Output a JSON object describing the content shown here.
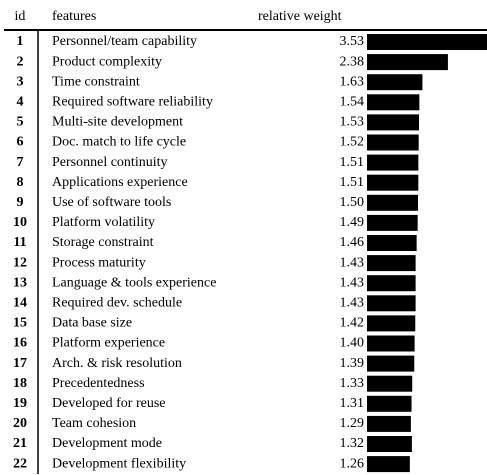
{
  "table": {
    "header": [
      "id",
      "features",
      "relative weight"
    ],
    "rows": [
      [
        "1",
        "Personnel/team capability",
        "3.53"
      ],
      [
        "2",
        "Product complexity",
        "2.38"
      ],
      [
        "3",
        "Time constraint",
        "1.63"
      ],
      [
        "4",
        "Required software reliability",
        "1.54"
      ],
      [
        "5",
        "Multi-site development",
        "1.53"
      ],
      [
        "6",
        "Doc. match to life cycle",
        "1.52"
      ],
      [
        "7",
        "Personnel continuity",
        "1.51"
      ],
      [
        "8",
        "Applications experience",
        "1.51"
      ],
      [
        "9",
        "Use of software tools",
        "1.50"
      ],
      [
        "10",
        "Platform volatility",
        "1.49"
      ],
      [
        "11",
        "Storage constraint",
        "1.46"
      ],
      [
        "12",
        "Process maturity",
        "1.43"
      ],
      [
        "13",
        "Language & tools experience",
        "1.43"
      ],
      [
        "14",
        "Required dev. schedule",
        "1.43"
      ],
      [
        "15",
        "Data base size",
        "1.42"
      ],
      [
        "16",
        "Platform experience",
        "1.40"
      ],
      [
        "17",
        "Arch. & risk resolution",
        "1.39"
      ],
      [
        "18",
        "Precedentedness",
        "1.33"
      ],
      [
        "19",
        "Developed for reuse",
        "1.31"
      ],
      [
        "20",
        "Team cohesion",
        "1.29"
      ],
      [
        "21",
        "Development mode",
        "1.32"
      ],
      [
        "22",
        "Development flexibility",
        "1.26"
      ]
    ]
  }
}
